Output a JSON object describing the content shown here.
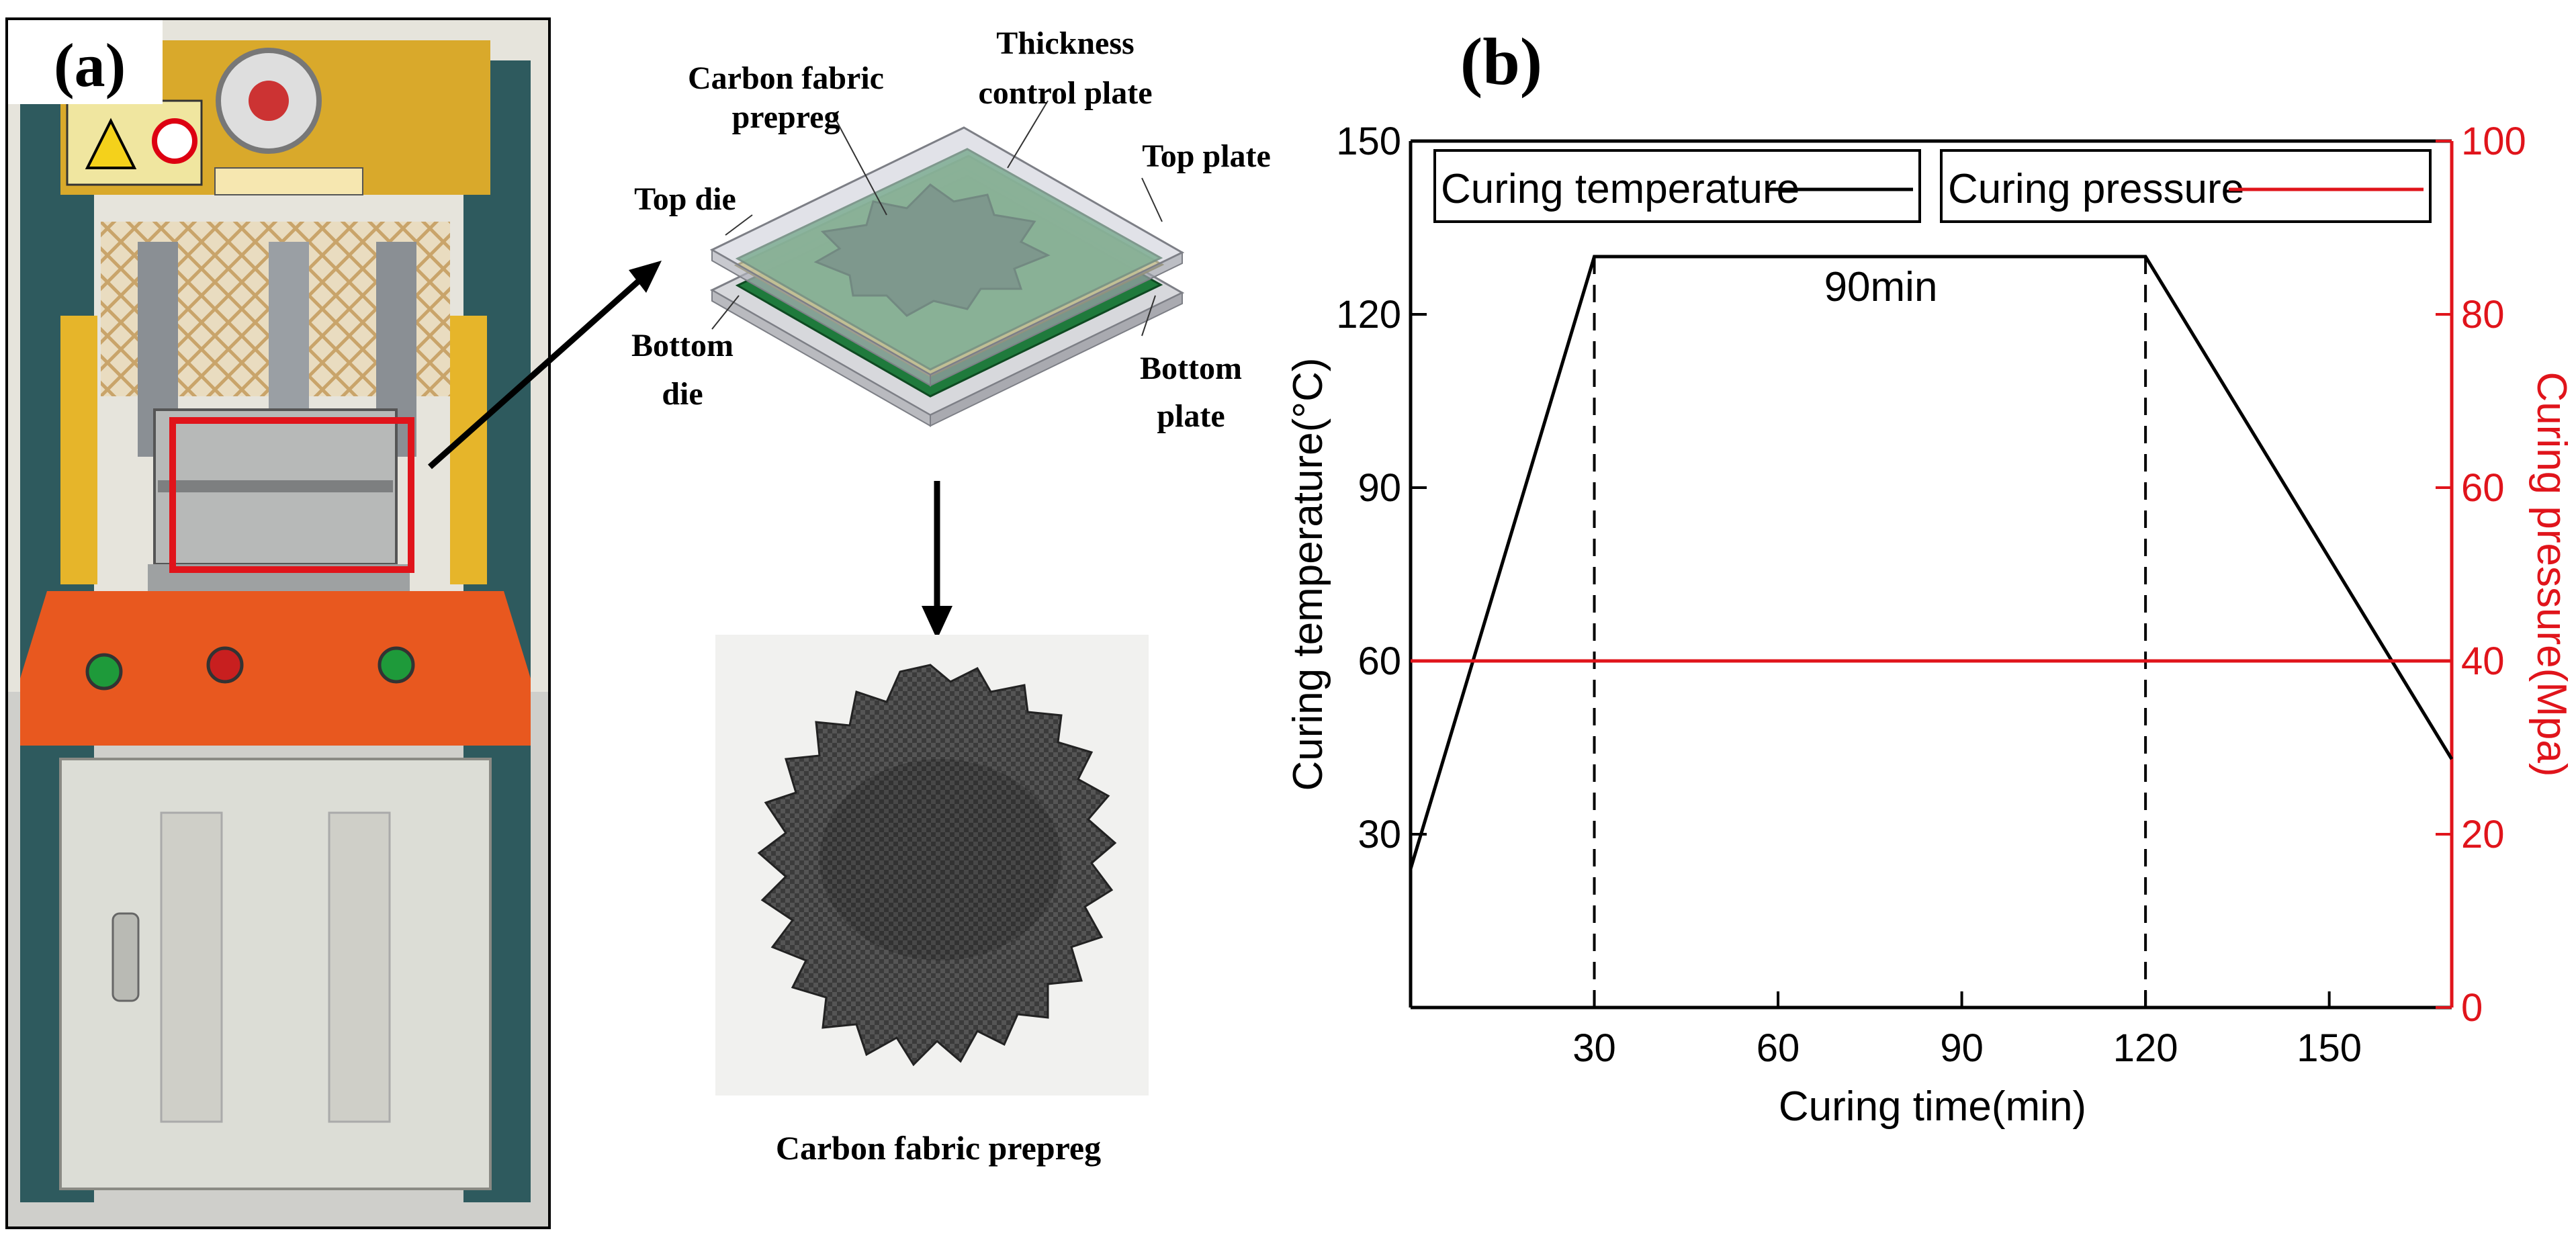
{
  "panel_a": {
    "label": "(a)",
    "callouts": {
      "carbon_fabric_prepreg": [
        "Carbon fabric",
        "prepreg"
      ],
      "thickness_control_plate": [
        "Thickness",
        "control plate"
      ],
      "top_plate": "Top plate",
      "top_die": "Top die",
      "bottom_die": [
        "Bottom",
        "die"
      ],
      "bottom_plate": [
        "Bottom",
        "plate"
      ]
    },
    "sample_caption": "Carbon fabric prepreg",
    "colors": {
      "highlight_box": "#e0141b",
      "press_frame": "#2e5a5e",
      "press_orange": "#e8581f",
      "press_body": "#dcddd6",
      "prepreg_green": "#1f7a3c",
      "thickness_plate": "#c9b84a",
      "die_grey": "#c8c8cc",
      "fabric_dark": "#3a3a3a"
    },
    "icons": [
      "hydraulic-press-photo",
      "mold-assembly-diagram",
      "prepreg-sample-photo",
      "arrow-right-icon",
      "arrow-down-icon"
    ]
  },
  "panel_b": {
    "label": "(b)",
    "annotation": "90min",
    "legend": {
      "temperature": "Curing temperature",
      "pressure": "Curing pressure"
    }
  },
  "chart_data": {
    "type": "line",
    "xlabel": "Curing time(min)",
    "ylabel_left": "Curing temperature(°C)",
    "ylabel_right": "Curing pressure(Mpa)",
    "xlim": [
      0,
      170
    ],
    "ylim_left": [
      0,
      150
    ],
    "ylim_right": [
      0,
      100
    ],
    "xticks": [
      30,
      60,
      90,
      120,
      150
    ],
    "yticks_left": [
      30,
      60,
      90,
      120,
      150
    ],
    "yticks_right": [
      0,
      20,
      40,
      60,
      80,
      100
    ],
    "grid": false,
    "legend_position": "top",
    "series": [
      {
        "name": "Curing temperature",
        "axis": "left",
        "color": "#000000",
        "x": [
          0,
          30,
          120,
          170
        ],
        "y": [
          24,
          130,
          130,
          43
        ]
      },
      {
        "name": "Curing pressure",
        "axis": "right",
        "color": "#e0141b",
        "x": [
          0,
          170
        ],
        "y": [
          40,
          40
        ]
      }
    ],
    "vlines": [
      30,
      120
    ]
  }
}
